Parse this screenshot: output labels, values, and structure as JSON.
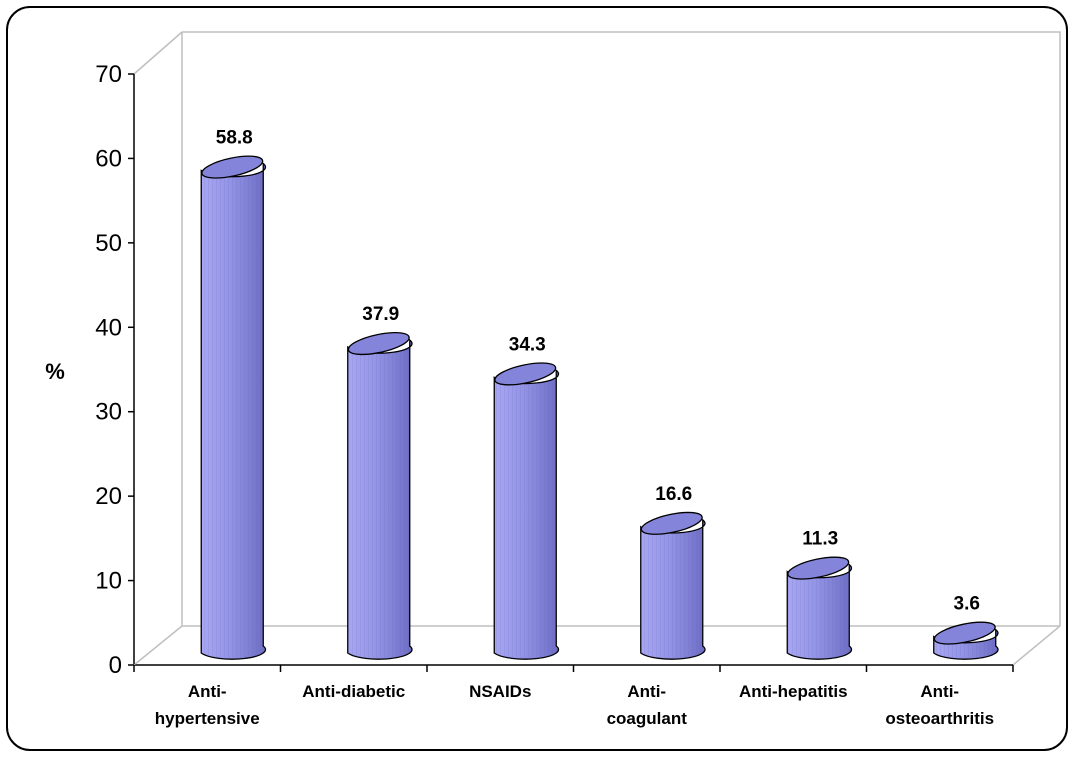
{
  "chart_data": {
    "type": "bar",
    "title": "",
    "xlabel": "",
    "ylabel": "%",
    "ylim": [
      0,
      70
    ],
    "yticks": [
      "0",
      "10",
      "20",
      "30",
      "40",
      "50",
      "60",
      "70"
    ],
    "categories": [
      [
        "Anti-",
        "hypertensive"
      ],
      [
        "Anti-diabetic"
      ],
      [
        "NSAIDs"
      ],
      [
        "Anti-",
        "coagulant"
      ],
      [
        "Anti-hepatitis"
      ],
      [
        "Anti-",
        "osteoarthritis"
      ]
    ],
    "values": [
      58.8,
      37.9,
      34.3,
      16.6,
      11.3,
      3.6
    ],
    "data_labels": [
      "58.8",
      "37.9",
      "34.3",
      "16.6",
      "11.3",
      "3.6"
    ],
    "bar_style": "3d-cylinder",
    "legend": "none",
    "grid": false,
    "colors": {
      "bar_fill": "#9A9AEE",
      "bar_shade": "#7373C9",
      "bar_top": "#8484DA",
      "outline": "#000000",
      "wall": "#BFBFBF"
    }
  }
}
